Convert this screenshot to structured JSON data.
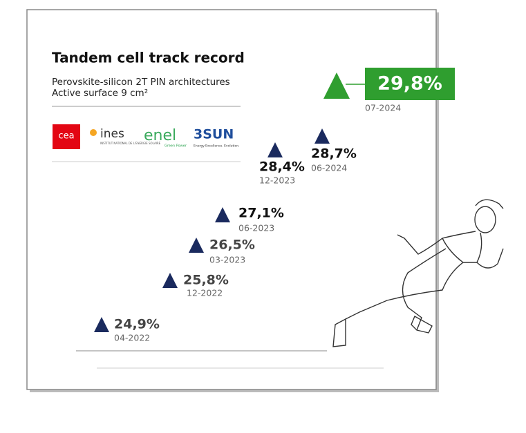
{
  "header": {
    "title": "Tandem cell track record",
    "subtitle": "Perovskite-silicon 2T PIN architectures",
    "surface": "Active surface 9 cm²"
  },
  "logos": {
    "cea": "cea",
    "ines": "ines",
    "ines_caption": "INSTITUT NATIONAL DE L'ENERGIE SOLAIRE",
    "enel": "enel",
    "enel_caption": "Green Power",
    "sun": "3SUN",
    "sun_caption": "Energy Excellence. Evolution."
  },
  "records": [
    {
      "efficiency": "24,9%",
      "date": "04-2022"
    },
    {
      "efficiency": "25,8%",
      "date": "12-2022"
    },
    {
      "efficiency": "26,5%",
      "date": "03-2023"
    },
    {
      "efficiency": "27,1%",
      "date": "06-2023"
    },
    {
      "efficiency": "28,4%",
      "date": "12-2023"
    },
    {
      "efficiency": "28,7%",
      "date": "06-2024"
    },
    {
      "efficiency": "29,8%",
      "date": "07-2024"
    }
  ]
}
